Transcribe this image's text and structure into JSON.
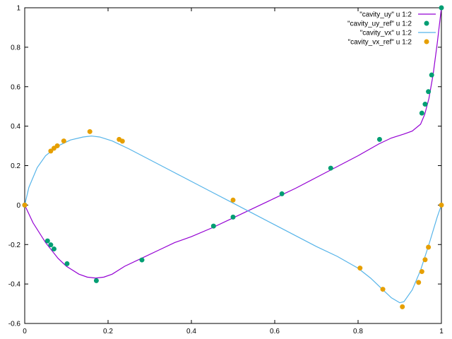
{
  "chart_data": {
    "type": "line",
    "xlim": [
      0,
      1
    ],
    "ylim": [
      -0.6,
      1
    ],
    "x_ticks": [
      0,
      0.2,
      0.4,
      0.6,
      0.8,
      1
    ],
    "y_ticks": [
      -0.6,
      -0.4,
      -0.2,
      0,
      0.2,
      0.4,
      0.6,
      0.8,
      1
    ],
    "x_tick_labels": [
      "0",
      "0.2",
      "0.4",
      "0.6",
      "0.8",
      "1"
    ],
    "y_tick_labels": [
      "-0.6",
      "-0.4",
      "-0.2",
      "0",
      "0.2",
      "0.4",
      "0.6",
      "0.8",
      "1"
    ],
    "grid": false,
    "legend_position": "top-right",
    "series": [
      {
        "name": "\"cavity_uy\" u 1:2",
        "style": "line",
        "color": "#9400d3",
        "x": [
          0,
          0.02,
          0.05,
          0.08,
          0.1,
          0.13,
          0.15,
          0.17,
          0.19,
          0.21,
          0.24,
          0.28,
          0.32,
          0.36,
          0.4,
          0.45,
          0.5,
          0.55,
          0.6,
          0.65,
          0.7,
          0.75,
          0.8,
          0.85,
          0.88,
          0.91,
          0.93,
          0.95,
          0.96,
          0.97,
          0.98,
          0.99,
          1
        ],
        "y": [
          0,
          -0.09,
          -0.19,
          -0.27,
          -0.31,
          -0.35,
          -0.365,
          -0.37,
          -0.365,
          -0.35,
          -0.31,
          -0.27,
          -0.23,
          -0.19,
          -0.16,
          -0.115,
          -0.065,
          -0.015,
          0.035,
          0.085,
          0.14,
          0.195,
          0.25,
          0.31,
          0.34,
          0.36,
          0.375,
          0.41,
          0.46,
          0.54,
          0.66,
          0.82,
          1
        ]
      },
      {
        "name": "\"cavity_uy_ref\" u 1:2",
        "style": "points",
        "color": "#009e73",
        "x": [
          0,
          0.0547,
          0.0625,
          0.0703,
          0.1016,
          0.1719,
          0.2813,
          0.4531,
          0.5,
          0.6172,
          0.7344,
          0.8516,
          0.9531,
          0.9609,
          0.9688,
          0.9766,
          1
        ],
        "y": [
          0,
          -0.1815,
          -0.2015,
          -0.2222,
          -0.2973,
          -0.3829,
          -0.2781,
          -0.1065,
          -0.0608,
          0.0571,
          0.1872,
          0.333,
          0.466,
          0.5112,
          0.5749,
          0.6593,
          1
        ]
      },
      {
        "name": "\"cavity_vx\" u 1:2",
        "style": "line",
        "color": "#56b4e9",
        "x": [
          0,
          0.01,
          0.03,
          0.05,
          0.08,
          0.11,
          0.14,
          0.16,
          0.18,
          0.21,
          0.25,
          0.3,
          0.35,
          0.4,
          0.45,
          0.5,
          0.55,
          0.6,
          0.65,
          0.7,
          0.75,
          0.8,
          0.83,
          0.86,
          0.88,
          0.9,
          0.91,
          0.93,
          0.95,
          0.97,
          0.99,
          1
        ],
        "y": [
          0,
          0.09,
          0.19,
          0.25,
          0.3,
          0.33,
          0.345,
          0.35,
          0.345,
          0.325,
          0.285,
          0.23,
          0.175,
          0.12,
          0.065,
          0.01,
          -0.045,
          -0.1,
          -0.155,
          -0.21,
          -0.26,
          -0.32,
          -0.37,
          -0.43,
          -0.47,
          -0.495,
          -0.49,
          -0.43,
          -0.33,
          -0.2,
          -0.06,
          0
        ]
      },
      {
        "name": "\"cavity_vx_ref\" u 1:2",
        "style": "points",
        "color": "#e69f00",
        "x": [
          0,
          0.0625,
          0.0703,
          0.0781,
          0.0938,
          0.1563,
          0.2266,
          0.2344,
          0.5,
          0.8047,
          0.8594,
          0.9063,
          0.9453,
          0.9531,
          0.9609,
          0.9688,
          1
        ],
        "y": [
          0,
          0.2739,
          0.2881,
          0.3004,
          0.3247,
          0.3724,
          0.333,
          0.3239,
          0.0253,
          -0.3193,
          -0.4267,
          -0.5155,
          -0.3919,
          -0.3371,
          -0.2769,
          -0.2134,
          0
        ]
      }
    ]
  }
}
